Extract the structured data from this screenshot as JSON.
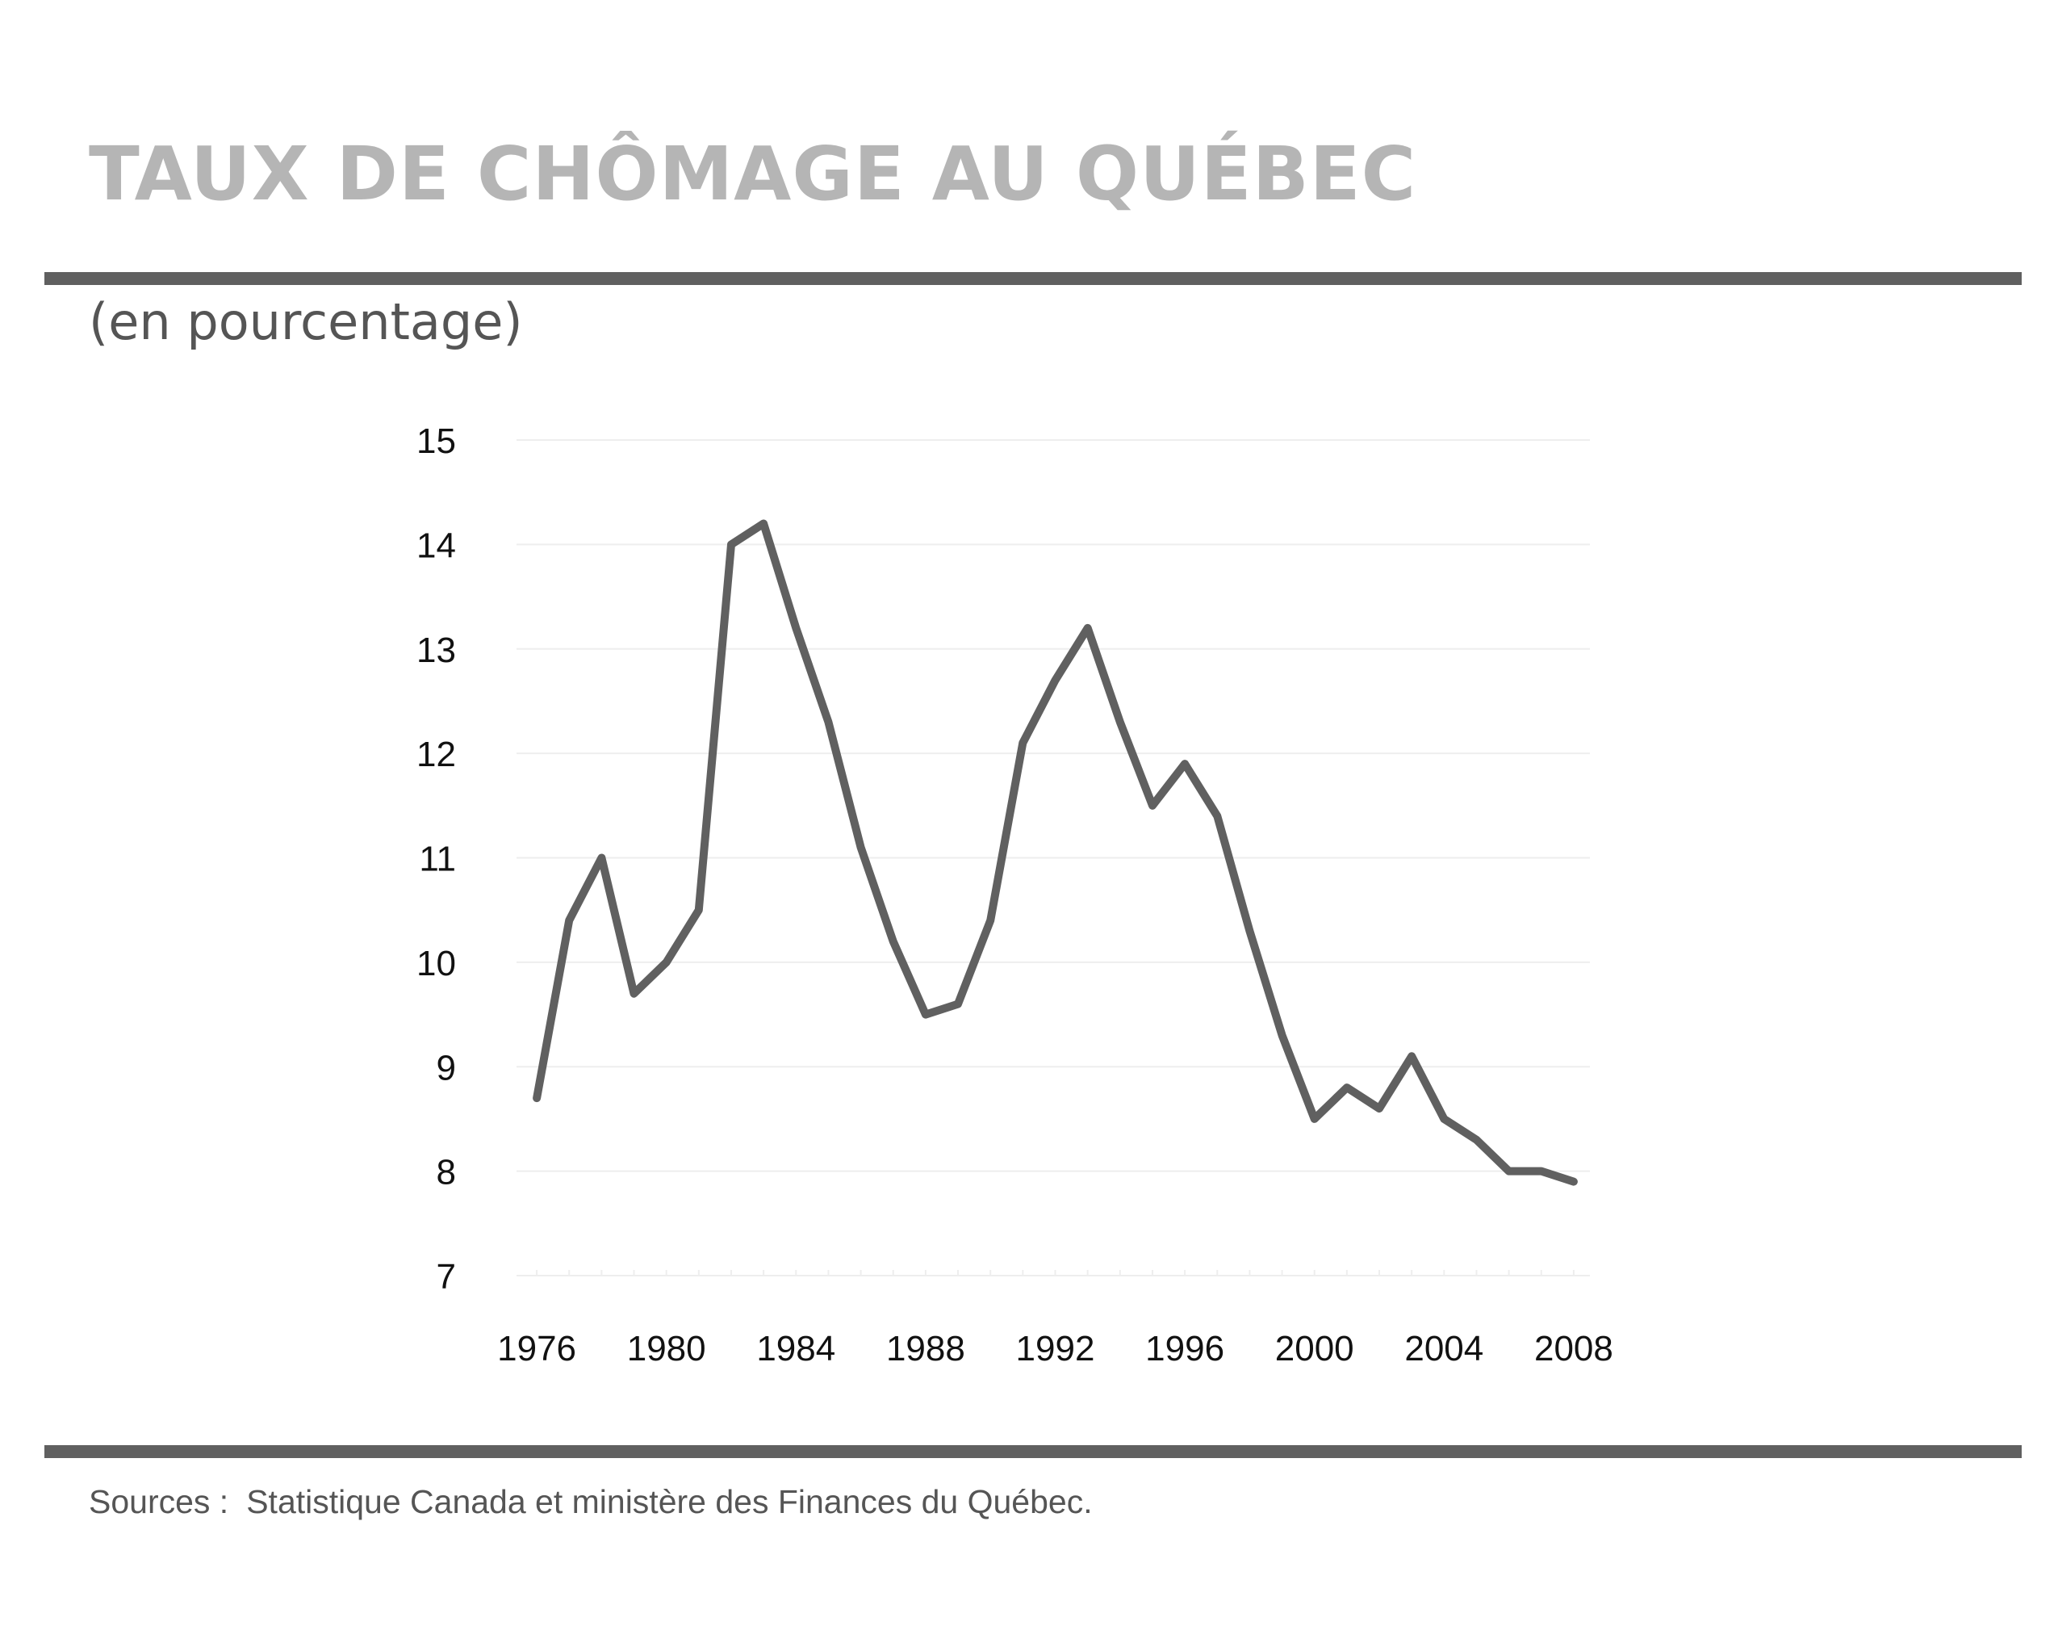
{
  "header": {
    "title": "TAUX DE CHÔMAGE AU QUÉBEC",
    "subtitle": "(en pourcentage)"
  },
  "footer": {
    "source_label": "Sources :",
    "source_text": "Statistique Canada et ministère des Finances du Québec."
  },
  "colors": {
    "line": "#606060",
    "title": "#b5b5b5",
    "rules": "#606060",
    "grid": "#eeeeee"
  },
  "chart_data": {
    "type": "line",
    "title": "TAUX DE CHÔMAGE AU QUÉBEC",
    "subtitle": "(en pourcentage)",
    "xlabel": "",
    "ylabel": "",
    "xlim": [
      1975.5,
      2008.5
    ],
    "ylim": [
      7,
      15
    ],
    "grid": true,
    "x_ticks": [
      1976,
      1980,
      1984,
      1988,
      1992,
      1996,
      2000,
      2004,
      2008
    ],
    "y_ticks": [
      7,
      8,
      9,
      10,
      11,
      12,
      13,
      14,
      15
    ],
    "series": [
      {
        "x": [
          1976,
          1977,
          1978,
          1979,
          1980,
          1981,
          1982,
          1983,
          1984,
          1985,
          1986,
          1987,
          1988,
          1989,
          1990,
          1991,
          1992,
          1993,
          1994,
          1995,
          1996,
          1997,
          1998,
          1999,
          2000,
          2001,
          2002,
          2003,
          2004,
          2005,
          2006,
          2007,
          2008
        ],
        "values": [
          8.7,
          10.4,
          11.0,
          9.7,
          10.0,
          10.5,
          14.0,
          14.2,
          13.2,
          12.3,
          11.1,
          10.2,
          9.5,
          9.6,
          10.4,
          12.1,
          12.7,
          13.2,
          12.3,
          11.5,
          11.9,
          11.4,
          10.3,
          9.3,
          8.5,
          8.8,
          8.6,
          9.1,
          8.5,
          8.3,
          8.0,
          8.0,
          7.9
        ]
      }
    ]
  }
}
